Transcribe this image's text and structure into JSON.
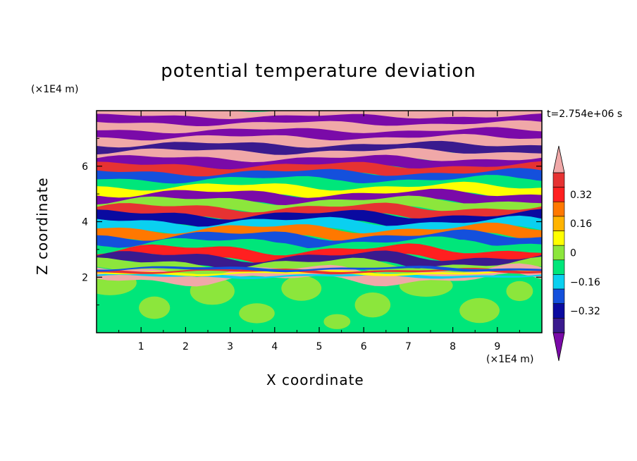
{
  "chart_data": {
    "type": "heatmap",
    "title": "potential temperature deviation",
    "xlabel": "X coordinate",
    "ylabel": "Z coordinate",
    "x_unit": "(×1E4 m)",
    "y_unit": "(×1E4 m)",
    "annotation": "t=2.754e+06 s",
    "xlim": [
      0,
      10
    ],
    "ylim": [
      0,
      8
    ],
    "x_ticks": [
      "1",
      "2",
      "3",
      "4",
      "5",
      "6",
      "7",
      "8",
      "9"
    ],
    "y_ticks": [
      "2",
      "4",
      "6"
    ],
    "colorbar": {
      "min": -0.48,
      "max": 0.48,
      "step": 0.08,
      "extend": "both",
      "labels": [
        "0.32",
        "0.16",
        "0",
        "−0.16",
        "−0.32"
      ],
      "label_values": [
        0.32,
        0.16,
        0,
        -0.16,
        -0.32
      ],
      "colors": [
        "#7a0aa8",
        "#3a1a8e",
        "#0a0aa0",
        "#1450dc",
        "#0ad0f0",
        "#00e67a",
        "#8ce63c",
        "#ffff00",
        "#ffb400",
        "#ff7800",
        "#ff2020",
        "#e63232",
        "#f0a8a8"
      ]
    }
  }
}
